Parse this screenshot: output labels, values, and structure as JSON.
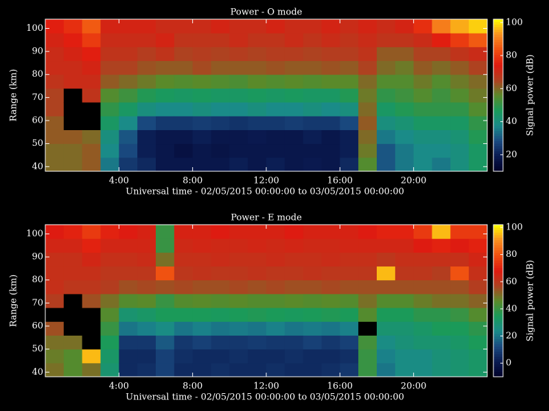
{
  "chart_data": [
    {
      "type": "heatmap",
      "title": "Power - O mode",
      "xlabel": "Universal time - 02/05/2015 00:00:00 to 03/05/2015 00:00:00",
      "ylabel": "Range (km)",
      "colorbar_label": "Signal power (dB)",
      "x": [
        0,
        1,
        2,
        3,
        4,
        5,
        6,
        7,
        8,
        9,
        10,
        11,
        12,
        13,
        14,
        15,
        16,
        17,
        18,
        19,
        20,
        21,
        22,
        23,
        24
      ],
      "y": [
        38,
        44,
        50,
        56,
        62,
        68,
        74,
        80,
        86,
        92,
        98,
        104
      ],
      "values": [
        [
          60,
          60,
          62,
          62,
          65,
          65,
          68,
          70,
          70,
          72,
          75
        ],
        [
          60,
          60,
          62,
          null,
          null,
          null,
          70,
          70,
          72,
          75,
          78
        ],
        [
          62,
          62,
          60,
          null,
          null,
          68,
          70,
          72,
          75,
          80,
          85
        ],
        [
          35,
          38,
          40,
          45,
          50,
          55,
          62,
          65,
          68,
          70,
          72
        ],
        [
          25,
          28,
          30,
          38,
          45,
          52,
          60,
          65,
          68,
          70,
          72
        ],
        [
          22,
          20,
          20,
          28,
          40,
          48,
          58,
          63,
          66,
          70,
          72
        ],
        [
          18,
          18,
          18,
          25,
          38,
          46,
          56,
          62,
          68,
          72,
          70
        ],
        [
          18,
          16,
          18,
          25,
          38,
          45,
          55,
          62,
          65,
          68,
          70
        ],
        [
          18,
          18,
          20,
          26,
          40,
          46,
          56,
          64,
          66,
          68,
          70
        ],
        [
          18,
          17,
          18,
          25,
          38,
          45,
          55,
          62,
          65,
          68,
          72
        ],
        [
          20,
          18,
          18,
          24,
          38,
          45,
          54,
          62,
          66,
          70,
          70
        ],
        [
          18,
          18,
          19,
          25,
          40,
          46,
          56,
          62,
          65,
          68,
          70
        ],
        [
          20,
          18,
          18,
          25,
          38,
          45,
          55,
          63,
          66,
          68,
          72
        ],
        [
          18,
          18,
          18,
          26,
          38,
          46,
          56,
          62,
          66,
          70,
          70
        ],
        [
          19,
          18,
          20,
          25,
          40,
          45,
          55,
          62,
          65,
          68,
          70
        ],
        [
          18,
          18,
          18,
          25,
          38,
          45,
          56,
          63,
          66,
          70,
          72
        ],
        [
          22,
          20,
          20,
          28,
          40,
          48,
          56,
          62,
          66,
          68,
          70
        ],
        [
          55,
          58,
          60,
          62,
          60,
          58,
          60,
          65,
          68,
          70,
          72
        ],
        [
          30,
          30,
          35,
          40,
          45,
          50,
          55,
          60,
          62,
          68,
          70
        ],
        [
          35,
          35,
          38,
          42,
          48,
          52,
          55,
          58,
          62,
          68,
          72
        ],
        [
          38,
          38,
          40,
          45,
          50,
          55,
          58,
          62,
          65,
          70,
          78
        ],
        [
          35,
          38,
          40,
          45,
          50,
          52,
          55,
          60,
          65,
          75,
          90
        ],
        [
          40,
          40,
          42,
          45,
          50,
          55,
          58,
          62,
          68,
          80,
          95
        ],
        [
          45,
          45,
          48,
          50,
          55,
          58,
          60,
          65,
          70,
          85,
          98
        ]
      ],
      "xlim": [
        0,
        24
      ],
      "ylim": [
        38,
        104
      ],
      "xticks": [
        {
          "value": 4,
          "label": "4:00"
        },
        {
          "value": 8,
          "label": "8:00"
        },
        {
          "value": 12,
          "label": "12:00"
        },
        {
          "value": 16,
          "label": "16:00"
        },
        {
          "value": 20,
          "label": "20:00"
        }
      ],
      "yticks": [
        40,
        50,
        60,
        70,
        80,
        90,
        100
      ],
      "clim": [
        10,
        102
      ],
      "cticks": [
        20,
        40,
        60,
        80,
        100
      ],
      "colormap": [
        "#000028",
        "#0a1a50",
        "#1a4a80",
        "#1a8a8a",
        "#1a9a5a",
        "#5a8a2a",
        "#b04020",
        "#e01a10",
        "#f05010",
        "#f89020",
        "#ffff00"
      ],
      "nan_color": "#000000"
    },
    {
      "type": "heatmap",
      "title": "Power - E mode",
      "xlabel": "Universal time - 02/05/2015 00:00:00 to 03/05/2015 00:00:00",
      "ylabel": "Range (km)",
      "colorbar_label": "Signal power (dB)",
      "x": [
        0,
        1,
        2,
        3,
        4,
        5,
        6,
        7,
        8,
        9,
        10,
        11,
        12,
        13,
        14,
        15,
        16,
        17,
        18,
        19,
        20,
        21,
        22,
        23,
        24
      ],
      "y": [
        38,
        44,
        50,
        56,
        62,
        68,
        74,
        80,
        86,
        92,
        98,
        104
      ],
      "values": [
        [
          50,
          48,
          50,
          55,
          null,
          58,
          62,
          62,
          62,
          65,
          68
        ],
        [
          45,
          45,
          50,
          null,
          null,
          null,
          60,
          62,
          62,
          65,
          70
        ],
        [
          50,
          95,
          null,
          null,
          null,
          55,
          60,
          62,
          65,
          70,
          75
        ],
        [
          30,
          32,
          35,
          40,
          45,
          50,
          58,
          60,
          62,
          65,
          70
        ],
        [
          5,
          5,
          8,
          20,
          30,
          45,
          55,
          60,
          62,
          65,
          68
        ],
        [
          6,
          5,
          8,
          22,
          32,
          46,
          56,
          60,
          63,
          65,
          66
        ],
        [
          10,
          10,
          15,
          25,
          35,
          40,
          55,
          80,
          50,
          40,
          40
        ],
        [
          5,
          6,
          8,
          20,
          35,
          45,
          56,
          60,
          62,
          64,
          66
        ],
        [
          5,
          5,
          10,
          22,
          35,
          46,
          55,
          61,
          62,
          65,
          66
        ],
        [
          6,
          5,
          8,
          20,
          34,
          45,
          55,
          60,
          63,
          64,
          68
        ],
        [
          5,
          6,
          8,
          21,
          35,
          46,
          56,
          60,
          62,
          64,
          66
        ],
        [
          5,
          5,
          9,
          20,
          36,
          45,
          55,
          61,
          62,
          65,
          66
        ],
        [
          6,
          5,
          8,
          22,
          35,
          45,
          56,
          60,
          63,
          64,
          66
        ],
        [
          5,
          6,
          8,
          20,
          34,
          46,
          55,
          60,
          62,
          65,
          68
        ],
        [
          5,
          5,
          10,
          21,
          35,
          45,
          55,
          61,
          62,
          64,
          66
        ],
        [
          6,
          5,
          8,
          20,
          36,
          46,
          56,
          60,
          63,
          64,
          66
        ],
        [
          8,
          6,
          10,
          22,
          35,
          45,
          55,
          60,
          62,
          65,
          66
        ],
        [
          40,
          40,
          42,
          null,
          45,
          50,
          55,
          60,
          62,
          65,
          68
        ],
        [
          20,
          22,
          25,
          30,
          35,
          45,
          55,
          95,
          60,
          65,
          70
        ],
        [
          25,
          25,
          28,
          30,
          35,
          45,
          55,
          60,
          62,
          65,
          70
        ],
        [
          25,
          25,
          30,
          32,
          38,
          48,
          55,
          60,
          62,
          68,
          75
        ],
        [
          28,
          28,
          30,
          35,
          38,
          50,
          55,
          58,
          62,
          70,
          95
        ],
        [
          30,
          30,
          32,
          35,
          40,
          50,
          55,
          80,
          62,
          68,
          75
        ],
        [
          32,
          32,
          35,
          38,
          45,
          52,
          58,
          62,
          65,
          70,
          75
        ]
      ],
      "xlim": [
        0,
        24
      ],
      "ylim": [
        38,
        104
      ],
      "xticks": [
        {
          "value": 4,
          "label": "4:00"
        },
        {
          "value": 8,
          "label": "8:00"
        },
        {
          "value": 12,
          "label": "12:00"
        },
        {
          "value": 16,
          "label": "16:00"
        },
        {
          "value": 20,
          "label": "20:00"
        }
      ],
      "yticks": [
        40,
        50,
        60,
        70,
        80,
        90,
        100
      ],
      "clim": [
        -10,
        102
      ],
      "cticks": [
        0,
        20,
        40,
        60,
        80,
        100
      ],
      "colormap": [
        "#000028",
        "#0a1a50",
        "#1a4a80",
        "#1a8a8a",
        "#1a9a5a",
        "#5a8a2a",
        "#b04020",
        "#e01a10",
        "#f05010",
        "#f89020",
        "#ffff00"
      ],
      "nan_color": "#000000"
    }
  ]
}
